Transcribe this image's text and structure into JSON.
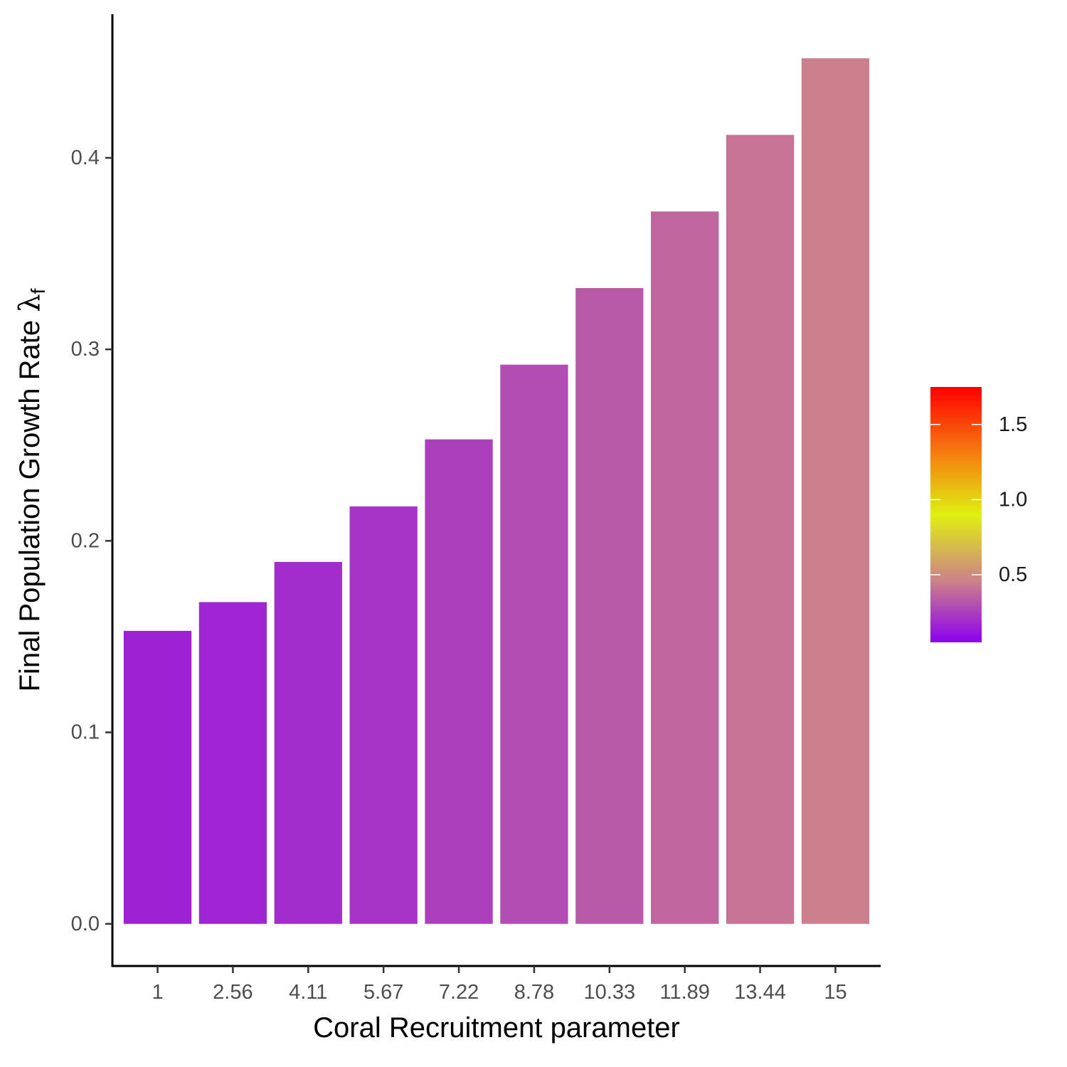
{
  "chart_data": {
    "type": "bar",
    "title": "",
    "xlabel": "Coral Recruitment parameter",
    "ylabel": {
      "text": "Final Population Growth Rate ",
      "symbol": "λ",
      "subscript": "f"
    },
    "categories": [
      "1",
      "2.56",
      "4.11",
      "5.67",
      "7.22",
      "8.78",
      "10.33",
      "11.89",
      "13.44",
      "15"
    ],
    "values": [
      0.153,
      0.168,
      0.189,
      0.218,
      0.253,
      0.292,
      0.332,
      0.372,
      0.412,
      0.452
    ],
    "ylim": [
      -0.022,
      0.475
    ],
    "yticks": [
      0.0,
      0.1,
      0.2,
      0.3,
      0.4
    ],
    "ytick_labels": [
      "0.0",
      "0.1",
      "0.2",
      "0.3",
      "0.4"
    ],
    "grid": false,
    "fill_by": "value",
    "colorbar": {
      "placement": "right",
      "range": [
        0.05,
        1.75
      ],
      "ticks": [
        0.5,
        1.0,
        1.5
      ],
      "tick_labels": [
        "0.5",
        "1.0",
        "1.5"
      ],
      "stops": [
        {
          "value": 0.05,
          "color": "#8b00ee"
        },
        {
          "value": 0.45,
          "color": "#cc7f8c"
        },
        {
          "value": 0.9,
          "color": "#e0f011"
        },
        {
          "value": 1.3,
          "color": "#f57f10"
        },
        {
          "value": 1.75,
          "color": "#ff0000"
        }
      ]
    }
  }
}
